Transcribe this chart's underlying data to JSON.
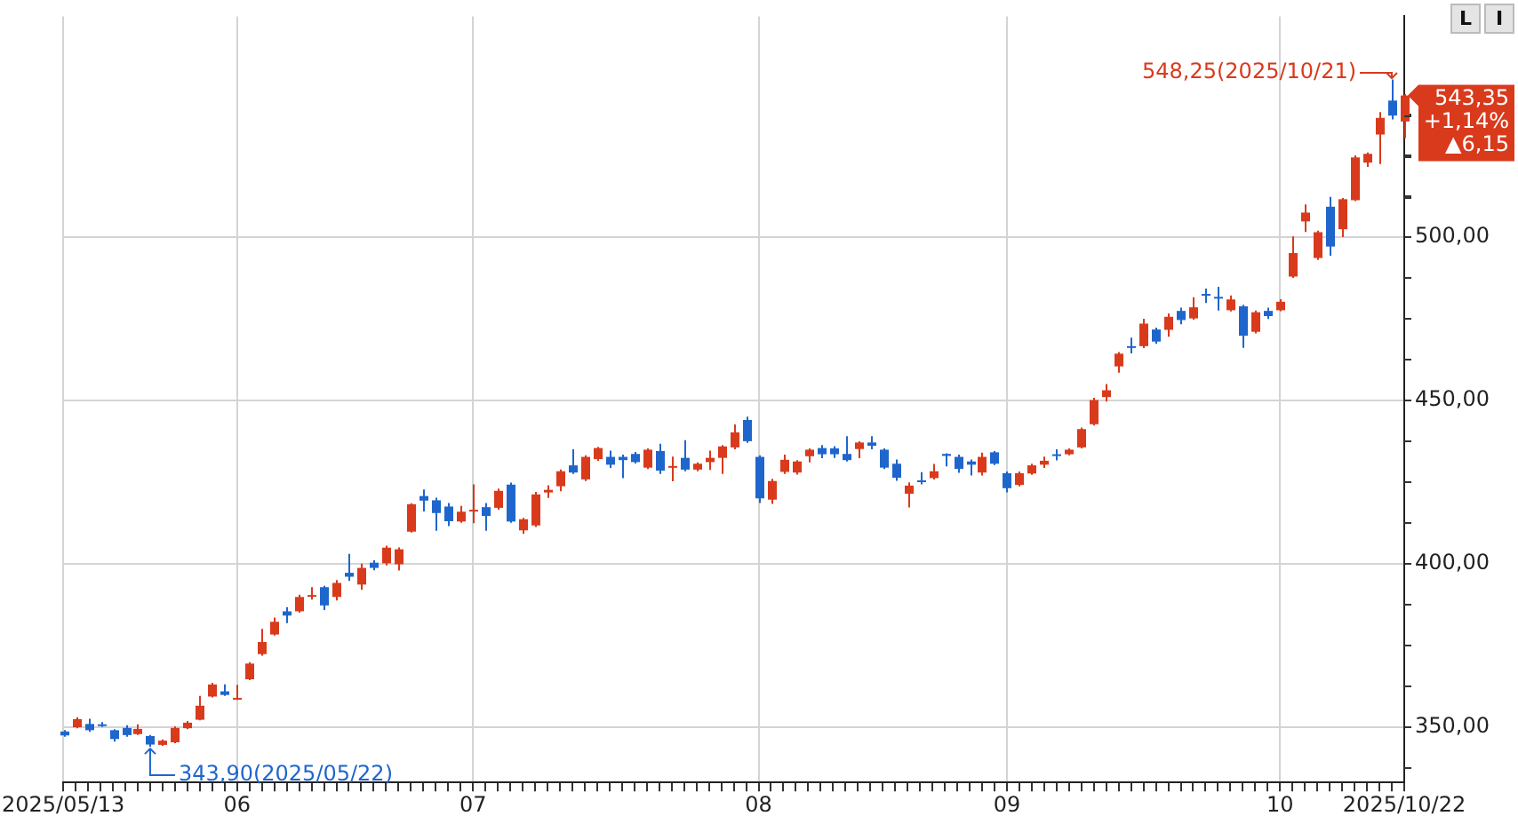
{
  "chart_data": {
    "type": "candlestick",
    "categories": [
      "2025/05/13",
      null,
      null,
      null,
      null,
      null,
      null,
      null,
      null,
      null,
      null,
      null,
      null,
      null,
      "06",
      null,
      null,
      null,
      null,
      null,
      null,
      null,
      null,
      null,
      null,
      null,
      null,
      null,
      null,
      null,
      null,
      null,
      null,
      "07",
      null,
      null,
      null,
      null,
      null,
      null,
      null,
      null,
      null,
      null,
      null,
      null,
      null,
      null,
      null,
      null,
      null,
      null,
      null,
      null,
      null,
      null,
      "08",
      null,
      null,
      null,
      null,
      null,
      null,
      null,
      null,
      null,
      null,
      null,
      null,
      null,
      null,
      null,
      null,
      null,
      null,
      null,
      "09",
      null,
      null,
      null,
      null,
      null,
      null,
      null,
      null,
      null,
      null,
      null,
      null,
      null,
      null,
      null,
      null,
      null,
      null,
      null,
      null,
      null,
      "10",
      null,
      null,
      null,
      null,
      null,
      null,
      null,
      null,
      null,
      "2025/10/22"
    ],
    "ohlc": [
      [
        348.6,
        349,
        347,
        347.4
      ],
      [
        349.9,
        353,
        349.6,
        352.4
      ],
      [
        350.9,
        352.5,
        348.5,
        349.0
      ],
      [
        350.8,
        351.5,
        350,
        350.5
      ],
      [
        349.0,
        349.3,
        345.5,
        346.3
      ],
      [
        349.7,
        350.5,
        347,
        347.5
      ],
      [
        347.8,
        350.8,
        347.5,
        349.4
      ],
      [
        347.2,
        347.5,
        343.9,
        344.6
      ],
      [
        344.5,
        346.2,
        344.2,
        345.8
      ],
      [
        345.3,
        350.2,
        345,
        349.7
      ],
      [
        349.6,
        351.8,
        349.3,
        351.3
      ],
      [
        352.2,
        359.5,
        352,
        356.5
      ],
      [
        359.3,
        363.5,
        359,
        363.0
      ],
      [
        360.9,
        363,
        359.5,
        359.8
      ],
      [
        358.6,
        362.9,
        358.3,
        358.9
      ],
      [
        364.6,
        369.8,
        364.3,
        369.4
      ],
      [
        372.3,
        380,
        371.8,
        376.0
      ],
      [
        378.3,
        383.5,
        378,
        382.2
      ],
      [
        385.4,
        386.7,
        381.8,
        384.1
      ],
      [
        385.4,
        390.5,
        385,
        389.8
      ],
      [
        390.1,
        392.8,
        389,
        390.4
      ],
      [
        392.8,
        393.2,
        385.8,
        387.2
      ],
      [
        389.8,
        395,
        388.7,
        394.1
      ],
      [
        397.2,
        403.0,
        394.7,
        396.0
      ],
      [
        393.6,
        400,
        392,
        398.7
      ],
      [
        400.3,
        401,
        398,
        398.7
      ],
      [
        400.1,
        405.5,
        399.5,
        404.9
      ],
      [
        399.8,
        405,
        397.9,
        404.4
      ],
      [
        409.8,
        418.5,
        409.5,
        418.2
      ],
      [
        420.7,
        422.7,
        416,
        419.3
      ],
      [
        419.4,
        420.2,
        410.1,
        415.5
      ],
      [
        417.5,
        418.6,
        411.5,
        413.0
      ],
      [
        412.9,
        417.7,
        412.5,
        415.9
      ],
      [
        416.2,
        424.3,
        412.4,
        416.5
      ],
      [
        417.3,
        418.6,
        410.1,
        414.6
      ],
      [
        417.1,
        423,
        416.5,
        422.3
      ],
      [
        424.2,
        424.8,
        412.5,
        412.9
      ],
      [
        410.2,
        414,
        409.1,
        413.6
      ],
      [
        411.7,
        422,
        411.2,
        421.2
      ],
      [
        421.8,
        424.0,
        420.1,
        422.6
      ],
      [
        423.7,
        428.8,
        422.2,
        428.3
      ],
      [
        430.1,
        435,
        427.5,
        427.9
      ],
      [
        425.8,
        433.2,
        425.3,
        432.7
      ],
      [
        432.0,
        435.8,
        431.5,
        435.4
      ],
      [
        432.7,
        434.6,
        429.3,
        430.3
      ],
      [
        432.7,
        433.4,
        426.2,
        431.7
      ],
      [
        433.6,
        434.2,
        430.7,
        431.1
      ],
      [
        429.4,
        435.3,
        429,
        434.9
      ],
      [
        434.5,
        436.7,
        427.5,
        428.5
      ],
      [
        429.7,
        432.8,
        425.2,
        429.9
      ],
      [
        432.4,
        437.8,
        428.3,
        428.8
      ],
      [
        428.8,
        431,
        428.3,
        430.6
      ],
      [
        431.1,
        434.6,
        428.7,
        432.4
      ],
      [
        432.4,
        436.3,
        427.5,
        435.9
      ],
      [
        435.6,
        442.6,
        435,
        440.2
      ],
      [
        444.0,
        445,
        437,
        437.5
      ],
      [
        432.7,
        433.2,
        418.6,
        420.0
      ],
      [
        419.6,
        426,
        418.3,
        425.3
      ],
      [
        428.1,
        433.4,
        427.5,
        431.8
      ],
      [
        427.9,
        431.7,
        427.3,
        431.3
      ],
      [
        432.9,
        435.3,
        431.0,
        434.9
      ],
      [
        435.4,
        436.3,
        432.3,
        433.5
      ],
      [
        435.3,
        436,
        432.4,
        433.5
      ],
      [
        433.6,
        439,
        431.3,
        431.7
      ],
      [
        435.1,
        437.5,
        432.3,
        437.1
      ],
      [
        437.1,
        439,
        435,
        436.1
      ],
      [
        434.9,
        435.3,
        429,
        429.4
      ],
      [
        430.6,
        431.9,
        425.4,
        426.3
      ],
      [
        421.4,
        424.9,
        417.2,
        423.9
      ],
      [
        425.5,
        428,
        424.3,
        425.3
      ],
      [
        426.2,
        430.5,
        425.8,
        428.3
      ],
      [
        433.6,
        433.8,
        429.8,
        433.0
      ],
      [
        432.7,
        433.4,
        427.8,
        429.0
      ],
      [
        431.3,
        431.9,
        427,
        430.3
      ],
      [
        427.9,
        434,
        427,
        432.7
      ],
      [
        434.1,
        434.5,
        430.2,
        430.6
      ],
      [
        427.7,
        428.2,
        421.8,
        423.1
      ],
      [
        424.1,
        428.2,
        423.7,
        427.7
      ],
      [
        427.6,
        430.6,
        427.2,
        430.1
      ],
      [
        430.3,
        432.8,
        429.3,
        431.5
      ],
      [
        433.5,
        435,
        431.6,
        433.3
      ],
      [
        433.5,
        435.3,
        433.2,
        434.9
      ],
      [
        435.6,
        441.7,
        435.3,
        441.2
      ],
      [
        442.7,
        450.8,
        442.3,
        450.1
      ],
      [
        451.0,
        455,
        449.6,
        453.1
      ],
      [
        460.4,
        464.8,
        458.5,
        464.3
      ],
      [
        466.6,
        469.2,
        464.4,
        466.4
      ],
      [
        466.6,
        475,
        466,
        473.5
      ],
      [
        471.7,
        472.3,
        467.3,
        468.0
      ],
      [
        471.6,
        476.6,
        469.5,
        475.6
      ],
      [
        477.4,
        478.4,
        473.3,
        474.6
      ],
      [
        475.1,
        481.6,
        474.7,
        478.5
      ],
      [
        482.6,
        484.2,
        479.8,
        482.4
      ],
      [
        481.7,
        484.8,
        477.5,
        481.5
      ],
      [
        477.6,
        482.1,
        477.2,
        480.9
      ],
      [
        478.8,
        479.3,
        466.1,
        469.8
      ],
      [
        471.0,
        477.5,
        470.5,
        477.0
      ],
      [
        477.4,
        478.4,
        474.9,
        475.8
      ],
      [
        477.6,
        481,
        477.3,
        480.2
      ],
      [
        487.9,
        500.2,
        487.5,
        495.1
      ],
      [
        504.8,
        510,
        501.6,
        507.5
      ],
      [
        493.6,
        502,
        493,
        501.5
      ],
      [
        509.3,
        512.3,
        494.3,
        497.1
      ],
      [
        502.4,
        512,
        500,
        511.6
      ],
      [
        511.3,
        525,
        511,
        524.4
      ],
      [
        522.8,
        525.9,
        521.5,
        525.5
      ],
      [
        531.4,
        538.3,
        522.4,
        536.5
      ],
      [
        541.8,
        548.25,
        536,
        537.2
      ],
      [
        535.4,
        543.8,
        530.3,
        543.35
      ]
    ],
    "colors": [
      "#1f66cc",
      "#d93a1c",
      "#1f66cc",
      "#1f66cc",
      "#1f66cc",
      "#1f66cc",
      "#d93a1c",
      "#1f66cc",
      "#d93a1c",
      "#d93a1c",
      "#d93a1c",
      "#d93a1c",
      "#d93a1c",
      "#1f66cc",
      "#d93a1c",
      "#d93a1c",
      "#d93a1c",
      "#d93a1c",
      "#1f66cc",
      "#d93a1c",
      "#d93a1c",
      "#1f66cc",
      "#d93a1c",
      "#1f66cc",
      "#d93a1c",
      "#1f66cc",
      "#d93a1c",
      "#d93a1c",
      "#d93a1c",
      "#1f66cc",
      "#1f66cc",
      "#1f66cc",
      "#d93a1c",
      "#d93a1c",
      "#1f66cc",
      "#d93a1c",
      "#1f66cc",
      "#d93a1c",
      "#d93a1c",
      "#d93a1c",
      "#d93a1c",
      "#1f66cc",
      "#d93a1c",
      "#d93a1c",
      "#1f66cc",
      "#1f66cc",
      "#1f66cc",
      "#d93a1c",
      "#1f66cc",
      "#d93a1c",
      "#1f66cc",
      "#d93a1c",
      "#d93a1c",
      "#d93a1c",
      "#d93a1c",
      "#1f66cc",
      "#1f66cc",
      "#d93a1c",
      "#d93a1c",
      "#d93a1c",
      "#d93a1c",
      "#1f66cc",
      "#1f66cc",
      "#1f66cc",
      "#d93a1c",
      "#1f66cc",
      "#1f66cc",
      "#1f66cc",
      "#d93a1c",
      "#1f66cc",
      "#d93a1c",
      "#1f66cc",
      "#1f66cc",
      "#1f66cc",
      "#d93a1c",
      "#1f66cc",
      "#1f66cc",
      "#d93a1c",
      "#d93a1c",
      "#d93a1c",
      "#1f66cc",
      "#d93a1c",
      "#d93a1c",
      "#d93a1c",
      "#d93a1c",
      "#d93a1c",
      "#1f66cc",
      "#d93a1c",
      "#1f66cc",
      "#d93a1c",
      "#1f66cc",
      "#d93a1c",
      "#1f66cc",
      "#1f66cc",
      "#d93a1c",
      "#1f66cc",
      "#d93a1c",
      "#1f66cc",
      "#d93a1c",
      "#d93a1c",
      "#d93a1c",
      "#d93a1c",
      "#1f66cc",
      "#d93a1c",
      "#d93a1c",
      "#d93a1c",
      "#d93a1c",
      "#1f66cc",
      "#d93a1c"
    ],
    "ylim": [
      333,
      567.6
    ],
    "yticks": [
      {
        "value": 337.5,
        "label": null
      },
      {
        "value": 350,
        "label": "350,00"
      },
      {
        "value": 362.5,
        "label": null
      },
      {
        "value": 375,
        "label": null
      },
      {
        "value": 387.5,
        "label": null
      },
      {
        "value": 400,
        "label": "400,00"
      },
      {
        "value": 412.5,
        "label": null
      },
      {
        "value": 425,
        "label": null
      },
      {
        "value": 437.5,
        "label": null
      },
      {
        "value": 450,
        "label": "450,00"
      },
      {
        "value": 462.5,
        "label": null
      },
      {
        "value": 475,
        "label": null
      },
      {
        "value": 487.5,
        "label": null
      },
      {
        "value": 500,
        "label": "500,00"
      },
      {
        "value": 512.5,
        "label": null
      },
      {
        "value": 525,
        "label": null
      },
      {
        "value": 537.5,
        "label": null
      }
    ],
    "grid": true,
    "annotations": [
      "548,25(2025/10/21)",
      "343,90(2025/05/22)",
      "543,35",
      "+1,14%",
      "▲6,15",
      "L",
      "I"
    ]
  }
}
